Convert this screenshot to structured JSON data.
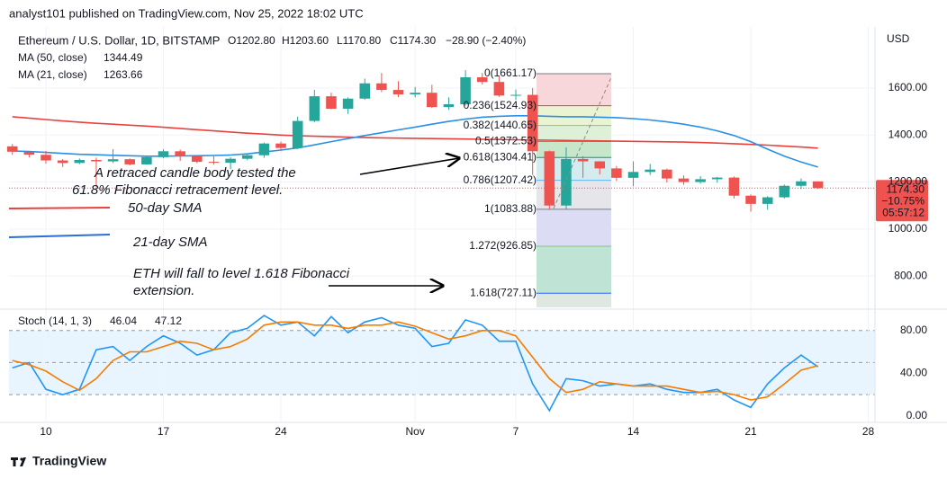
{
  "header": {
    "publisher": "analyst101 published on TradingView.com, Nov 25, 2022 18:02 UTC",
    "footer": "TradingView"
  },
  "chart_data": [
    {
      "type": "candlestick",
      "title": "Ethereum / U.S. Dollar, 1D, BITSTAMP",
      "ohlc_labels": [
        "O1202.80",
        "H1203.60",
        "L1170.80",
        "C1174.30"
      ],
      "change_label": "−28.90 (−2.40%)",
      "open": [
        1352,
        1329,
        1316,
        1292,
        1281,
        1294,
        1288,
        1297,
        1275,
        1306,
        1331,
        1311,
        1286,
        1282,
        1299,
        1314,
        1364,
        1345,
        1460,
        1565,
        1512,
        1555,
        1620,
        1592,
        1573,
        1580,
        1519,
        1531,
        1646,
        1626,
        1568,
        1571,
        1331,
        1100,
        1298,
        1288,
        1258,
        1218,
        1243,
        1253,
        1215,
        1200,
        1212,
        1219,
        1142,
        1107,
        1135,
        1184,
        1202.8
      ],
      "high": [
        1362,
        1330,
        1333,
        1298,
        1300,
        1304,
        1340,
        1300,
        1310,
        1340,
        1338,
        1313,
        1310,
        1305,
        1320,
        1368,
        1372,
        1478,
        1592,
        1580,
        1560,
        1640,
        1664,
        1629,
        1605,
        1614,
        1560,
        1676,
        1664,
        1652,
        1594,
        1600,
        1334,
        1348,
        1310,
        1289,
        1268,
        1288,
        1277,
        1257,
        1228,
        1225,
        1222,
        1224,
        1147,
        1140,
        1189,
        1215,
        1203.6
      ],
      "low": [
        1316,
        1305,
        1278,
        1264,
        1276,
        1180,
        1281,
        1271,
        1274,
        1301,
        1290,
        1280,
        1274,
        1255,
        1293,
        1303,
        1331,
        1340,
        1455,
        1510,
        1490,
        1550,
        1583,
        1561,
        1560,
        1515,
        1507,
        1525,
        1615,
        1563,
        1550,
        1230,
        1082,
        1085,
        1218,
        1232,
        1204,
        1182,
        1230,
        1198,
        1188,
        1193,
        1197,
        1130,
        1074,
        1082,
        1130,
        1170,
        1170.8
      ],
      "close": [
        1329,
        1316,
        1292,
        1281,
        1294,
        1288,
        1297,
        1275,
        1306,
        1331,
        1311,
        1286,
        1282,
        1299,
        1314,
        1364,
        1345,
        1460,
        1565,
        1512,
        1555,
        1620,
        1592,
        1573,
        1580,
        1519,
        1531,
        1646,
        1626,
        1568,
        1571,
        1331,
        1100,
        1298,
        1288,
        1258,
        1218,
        1243,
        1253,
        1215,
        1200,
        1212,
        1219,
        1142,
        1107,
        1135,
        1184,
        1203,
        1174.3
      ],
      "up_color": "#26a69a",
      "down_color": "#ef5350",
      "series": [
        {
          "name": "MA (50, close)",
          "color": "#e8423e",
          "values": [
            1478,
            1472,
            1466,
            1460,
            1455,
            1450,
            1446,
            1442,
            1438,
            1433,
            1428,
            1423,
            1418,
            1413,
            1408,
            1404,
            1400,
            1397,
            1395,
            1393,
            1391,
            1389,
            1388,
            1387,
            1386,
            1385,
            1384,
            1383,
            1382,
            1381,
            1380,
            1379,
            1378,
            1377,
            1376,
            1375,
            1374,
            1373,
            1372,
            1371,
            1370,
            1368,
            1366,
            1363,
            1360,
            1357,
            1353,
            1349,
            1344.49
          ]
        },
        {
          "name": "MA (21, close)",
          "color": "#2a8fe6",
          "values": [
            1332,
            1330,
            1326,
            1322,
            1318,
            1316,
            1314,
            1312,
            1310,
            1310,
            1311,
            1312,
            1313,
            1315,
            1320,
            1328,
            1336,
            1345,
            1358,
            1372,
            1385,
            1398,
            1410,
            1422,
            1434,
            1446,
            1458,
            1468,
            1476,
            1480,
            1482,
            1482,
            1480,
            1478,
            1478,
            1476,
            1474,
            1470,
            1464,
            1456,
            1446,
            1434,
            1418,
            1398,
            1372,
            1340,
            1310,
            1285,
            1263.66
          ]
        }
      ],
      "xlim": [
        -0.2,
        51.4
      ],
      "ylim": [
        659,
        1860
      ],
      "yticks": [
        {
          "value": 800,
          "label": "800.00"
        },
        {
          "value": 1000,
          "label": "1000.00"
        },
        {
          "value": 1200,
          "label": "1200.00"
        },
        {
          "value": 1400,
          "label": "1400.00"
        },
        {
          "value": 1600,
          "label": "1600.00"
        }
      ],
      "y_axis_label": "USD",
      "last_price": {
        "label": "1174.30",
        "change": "−10.75%",
        "countdown": "05:57:12",
        "color": "#ef5350"
      },
      "fibonacci": {
        "levels": [
          1661.17,
          1524.93,
          1440.65,
          1372.53,
          1304.41,
          1207.42,
          1083.88,
          926.85,
          727.11
        ],
        "value_labels": [
          "0(1661.17)",
          "0.236(1524.93)",
          "0.382(1440.65)",
          "0.5(1372.53)",
          "0.618(1304.41)",
          "0.786(1207.42)",
          "1(1083.88)",
          "1.272(926.85)",
          "1.618(727.11)"
        ],
        "label_colors": [
          "#787b86",
          "#f23645",
          "#81c784",
          "#4caf50",
          "#089981",
          "#64b5f6",
          "#787b86",
          "#81c784",
          "#2962ff"
        ],
        "zone_colors": [
          "#f8d7da",
          "#eaf4d3",
          "#dff0d8",
          "#c8e6c9",
          "#d4ecee",
          "#e6e6ea",
          "#dcdcf5",
          "#bfe3d4",
          "#dfe8e0"
        ]
      },
      "annotations": [
        {
          "lines": [
            "A retraced candle body tested the",
            "61.8% Fibonacci retracement level."
          ],
          "color": "#131722"
        },
        {
          "lines": [
            "50-day SMA"
          ],
          "color": "#e8423e"
        },
        {
          "lines": [
            "21-day SMA"
          ],
          "color": "#2a6fd6"
        },
        {
          "lines": [
            "ETH will fall to level 1.618 Fibonacci",
            "extension."
          ],
          "color": "#131722"
        }
      ]
    },
    {
      "type": "line",
      "title": "Stoch (14, 1, 3)",
      "series": [
        {
          "color": "#2196f3",
          "values": [
            45,
            50,
            25,
            20,
            25,
            62,
            65,
            52,
            65,
            75,
            68,
            57,
            62,
            78,
            82,
            94,
            85,
            88,
            75,
            93,
            78,
            88,
            92,
            85,
            82,
            65,
            68,
            90,
            85,
            70,
            70,
            30,
            5,
            35,
            33,
            28,
            30,
            28,
            30,
            25,
            22,
            22,
            25,
            15,
            8,
            30,
            45,
            57,
            46.04
          ]
        },
        {
          "color": "#f57c00",
          "values": [
            52,
            48,
            42,
            32,
            24,
            35,
            52,
            60,
            60,
            65,
            70,
            68,
            62,
            65,
            72,
            85,
            88,
            88,
            85,
            85,
            82,
            85,
            85,
            88,
            84,
            78,
            72,
            75,
            80,
            80,
            75,
            55,
            35,
            22,
            25,
            32,
            30,
            28,
            28,
            28,
            25,
            22,
            23,
            20,
            15,
            18,
            30,
            43,
            47.12
          ]
        }
      ],
      "band": [
        20,
        80
      ],
      "levels": [
        80,
        50,
        20
      ],
      "xlim": [
        -0.2,
        51.4
      ],
      "ylim": [
        -6,
        100
      ],
      "yticks": [
        {
          "value": 0,
          "label": "0.00"
        },
        {
          "value": 40,
          "label": "40.00"
        },
        {
          "value": 80,
          "label": "80.00"
        }
      ],
      "xticks": [
        {
          "value": 2,
          "label": "10"
        },
        {
          "value": 9,
          "label": "17"
        },
        {
          "value": 16,
          "label": "24"
        },
        {
          "value": 24,
          "label": "Nov"
        },
        {
          "value": 30,
          "label": "7"
        },
        {
          "value": 37,
          "label": "14"
        },
        {
          "value": 44,
          "label": "21"
        },
        {
          "value": 51,
          "label": "28"
        }
      ]
    }
  ]
}
